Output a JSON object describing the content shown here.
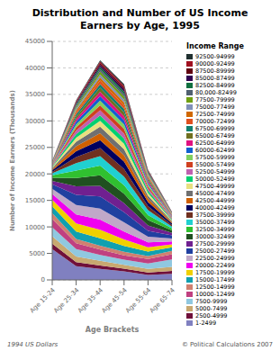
{
  "chart_data": {
    "type": "area",
    "title": "Distribution and Number of US Income\nEarners by Age, 1995",
    "x_label": "Age Brackets",
    "y_label": "Number of Income Earners (Thousands)",
    "legend_title": "Income Range",
    "annotations": [
      "1994 US Dollars",
      "© Political Calculations 2007"
    ],
    "categories": [
      "Age 15-24",
      "Age 25-34",
      "Age 35-44",
      "Age 45-54",
      "Age 55-64",
      "Age 65-74"
    ],
    "ylim": [
      0,
      45000
    ],
    "yticks": [
      0,
      5000,
      10000,
      15000,
      20000,
      25000,
      30000,
      35000,
      40000,
      45000
    ],
    "stacked": true,
    "grid": true,
    "legend": "right",
    "series": [
      {
        "name": "1-2499",
        "color": "#8080C0",
        "values": [
          5800,
          2600,
          2100,
          1600,
          950,
          1150
        ]
      },
      {
        "name": "2500-4999",
        "color": "#70103A",
        "values": [
          1050,
          750,
          600,
          520,
          460,
          560
        ]
      },
      {
        "name": "5000-7499",
        "color": "#C8A870",
        "values": [
          1400,
          1050,
          900,
          730,
          660,
          760
        ]
      },
      {
        "name": "7500-9999",
        "color": "#90C8E0",
        "values": [
          1700,
          1400,
          1100,
          950,
          1020,
          1400
        ]
      },
      {
        "name": "10000-12499",
        "color": "#C04080",
        "values": [
          1550,
          1100,
          1020,
          840,
          840,
          960
        ]
      },
      {
        "name": "12500-14999",
        "color": "#D08070",
        "values": [
          1100,
          840,
          740,
          650,
          560,
          660
        ]
      },
      {
        "name": "15000-17499",
        "color": "#10A0B0",
        "values": [
          1300,
          1400,
          1400,
          1120,
          840,
          660
        ]
      },
      {
        "name": "17500-19999",
        "color": "#F0D000",
        "values": [
          1200,
          1500,
          1600,
          1220,
          840,
          560
        ]
      },
      {
        "name": "20000-22499",
        "color": "#F000F0",
        "values": [
          1100,
          1700,
          1900,
          1510,
          940,
          560
        ]
      },
      {
        "name": "22500-24999",
        "color": "#C0A8C8",
        "values": [
          1000,
          1800,
          2100,
          1710,
          1020,
          560
        ]
      },
      {
        "name": "25000-27499",
        "color": "#2040A0",
        "values": [
          840,
          1900,
          2300,
          1910,
          1120,
          560
        ]
      },
      {
        "name": "27500-29999",
        "color": "#702090",
        "values": [
          660,
          1600,
          2000,
          1710,
          1020,
          470
        ]
      },
      {
        "name": "30000-32499",
        "color": "#205020",
        "values": [
          560,
          1600,
          2000,
          1810,
          1020,
          470
        ]
      },
      {
        "name": "32500-34999",
        "color": "#30C030",
        "values": [
          470,
          1400,
          1800,
          1610,
          940,
          375
        ]
      },
      {
        "name": "35000-37499",
        "color": "#20D0D0",
        "values": [
          375,
          1400,
          1800,
          1610,
          940,
          375
        ]
      },
      {
        "name": "37500-39999",
        "color": "#703020",
        "values": [
          280,
          1120,
          1510,
          1410,
          750,
          280
        ]
      },
      {
        "name": "40000-42499",
        "color": "#000060",
        "values": [
          280,
          1120,
          1510,
          1410,
          750,
          280
        ]
      },
      {
        "name": "42500-44999",
        "color": "#D06000",
        "values": [
          235,
          940,
          1310,
          1210,
          660,
          235
        ]
      },
      {
        "name": "45000-47499",
        "color": "#707070",
        "values": [
          190,
          840,
          1210,
          1120,
          560,
          200
        ]
      },
      {
        "name": "47500-49999",
        "color": "#E8E080",
        "values": [
          170,
          750,
          1120,
          1020,
          515,
          187
        ]
      },
      {
        "name": "50000-52499",
        "color": "#00D070",
        "values": [
          140,
          710,
          1020,
          975,
          470,
          170
        ]
      },
      {
        "name": "52500-54999",
        "color": "#C060B0",
        "values": [
          120,
          660,
          975,
          940,
          422,
          150
        ]
      },
      {
        "name": "55000-57499",
        "color": "#D04020",
        "values": [
          110,
          610,
          940,
          893,
          375,
          140
        ]
      },
      {
        "name": "57500-59999",
        "color": "#80D060",
        "values": [
          102,
          560,
          893,
          845,
          354,
          131
        ]
      },
      {
        "name": "60000-62499",
        "color": "#1060D0",
        "values": [
          93,
          540,
          845,
          798,
          328,
          122
        ]
      },
      {
        "name": "62500-64999",
        "color": "#E01080",
        "values": [
          84,
          483,
          798,
          751,
          300,
          112
        ]
      },
      {
        "name": "65000-67499",
        "color": "#707020",
        "values": [
          75,
          450,
          751,
          713,
          281,
          103
        ]
      },
      {
        "name": "67500-69999",
        "color": "#108070",
        "values": [
          70,
          422,
          704,
          675,
          262,
          94
        ]
      },
      {
        "name": "70000-72499",
        "color": "#E05020",
        "values": [
          65,
          394,
          657,
          638,
          243,
          84
        ]
      },
      {
        "name": "72500-74999",
        "color": "#D06800",
        "values": [
          60,
          366,
          610,
          600,
          224,
          75
        ]
      },
      {
        "name": "75000-77499",
        "color": "#8090B8",
        "values": [
          55,
          338,
          563,
          563,
          206,
          70
        ]
      },
      {
        "name": "77500-79999",
        "color": "#70A010",
        "values": [
          51,
          310,
          516,
          526,
          187,
          65
        ]
      },
      {
        "name": "80,000-82499",
        "color": "#506070",
        "values": [
          47,
          281,
          470,
          492,
          169,
          60
        ]
      },
      {
        "name": "82500-84999",
        "color": "#107040",
        "values": [
          42,
          253,
          432,
          451,
          150,
          56
        ]
      },
      {
        "name": "85000-87499",
        "color": "#300050",
        "values": [
          38,
          225,
          394,
          413,
          131,
          51
        ]
      },
      {
        "name": "87500-89999",
        "color": "#600010",
        "values": [
          33,
          197,
          338,
          375,
          112,
          47
        ]
      },
      {
        "name": "90000-92499",
        "color": "#A01020",
        "values": [
          28,
          169,
          281,
          328,
          94,
          42
        ]
      },
      {
        "name": "92500-94999",
        "color": "#203030",
        "values": [
          23,
          141,
          235,
          281,
          75,
          38
        ]
      }
    ]
  }
}
